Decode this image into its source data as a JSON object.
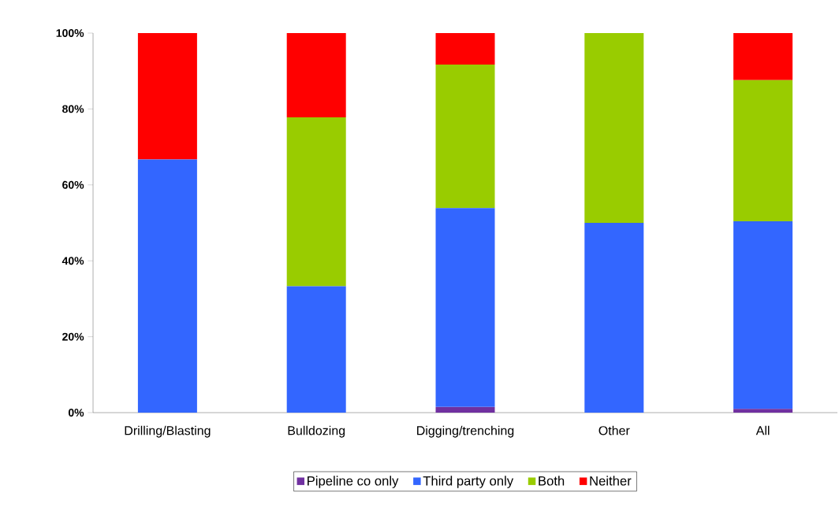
{
  "chart_data": {
    "type": "bar",
    "stacked": true,
    "categories": [
      "Drilling/Blasting",
      "Bulldozing",
      "Digging/trenching",
      "Other",
      "All"
    ],
    "series": [
      {
        "name": "Pipeline co only",
        "color": "#7030a0",
        "values": [
          0,
          0,
          1.5,
          0,
          1
        ]
      },
      {
        "name": "Third party only",
        "color": "#3366ff",
        "values": [
          66.7,
          33.3,
          52.4,
          50,
          49.4
        ]
      },
      {
        "name": "Both",
        "color": "#99cc00",
        "values": [
          0,
          44.5,
          37.8,
          50,
          37.2
        ]
      },
      {
        "name": "Neither",
        "color": "#ff0000",
        "values": [
          33.3,
          22.2,
          8.3,
          0,
          12.4
        ]
      }
    ],
    "ylim": [
      0,
      100
    ],
    "yticks": [
      {
        "value": 0,
        "label": "0%"
      },
      {
        "value": 20,
        "label": "20%"
      },
      {
        "value": 40,
        "label": "40%"
      },
      {
        "value": 60,
        "label": "60%"
      },
      {
        "value": 80,
        "label": "80%"
      },
      {
        "value": 100,
        "label": "100%"
      }
    ],
    "grid": false,
    "legend": "bottom"
  }
}
